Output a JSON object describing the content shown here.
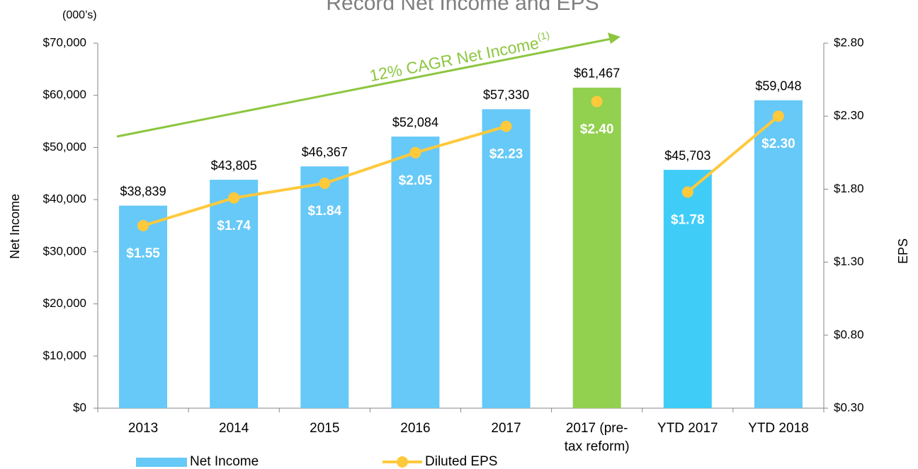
{
  "chart_data": {
    "type": "bar_line",
    "title": "Record Net Income and EPS",
    "subtitle": "(000’s)",
    "ylabel": "Net Income",
    "y2label": "EPS",
    "categories": [
      "2013",
      "2014",
      "2015",
      "2016",
      "2017",
      "2017 (pre-tax reform)",
      "YTD 2017",
      "YTD 2018"
    ],
    "series": [
      {
        "name": "Net Income",
        "type": "bar",
        "color": "#66c9f7",
        "colors": [
          "#66c9f7",
          "#66c9f7",
          "#66c9f7",
          "#66c9f7",
          "#66c9f7",
          "#92d050",
          "#3fcdf8",
          "#66c9f7"
        ],
        "values": [
          38839,
          43805,
          46367,
          52084,
          57330,
          61467,
          45703,
          59048
        ],
        "value_labels": [
          "$38,839",
          "$43,805",
          "$46,367",
          "$52,084",
          "$57,330",
          "$61,467",
          "$45,703",
          "$59,048"
        ]
      },
      {
        "name": "Diluted EPS",
        "type": "line",
        "axis": "y2",
        "color": "#ffc93c",
        "values": [
          1.55,
          1.74,
          1.84,
          2.05,
          2.23,
          2.4,
          1.78,
          2.3
        ],
        "value_labels": [
          "$1.55",
          "$1.74",
          "$1.84",
          "$2.05",
          "$2.23",
          "$2.40",
          "$1.78",
          "$2.30"
        ],
        "unconnected": [
          5
        ]
      }
    ],
    "ylim": [
      0,
      70000
    ],
    "yticks": [
      {
        "value": 0,
        "label": "$0"
      },
      {
        "value": 10000,
        "label": "$10,000"
      },
      {
        "value": 20000,
        "label": "$20,000"
      },
      {
        "value": 30000,
        "label": "$30,000"
      },
      {
        "value": 40000,
        "label": "$40,000"
      },
      {
        "value": 50000,
        "label": "$50,000"
      },
      {
        "value": 60000,
        "label": "$60,000"
      },
      {
        "value": 70000,
        "label": "$70,000"
      }
    ],
    "y2lim": [
      0.3,
      2.8
    ],
    "y2ticks": [
      {
        "value": 0.3,
        "label": "$0.30"
      },
      {
        "value": 0.8,
        "label": "$0.80"
      },
      {
        "value": 1.3,
        "label": "$1.30"
      },
      {
        "value": 1.8,
        "label": "$1.80"
      },
      {
        "value": 2.3,
        "label": "$2.30"
      },
      {
        "value": 2.8,
        "label": "$2.80"
      }
    ],
    "annotation": {
      "text": "12% CAGR Net Income",
      "superscript": "(1)",
      "color": "#8cc63f"
    },
    "legend": "bottom"
  }
}
